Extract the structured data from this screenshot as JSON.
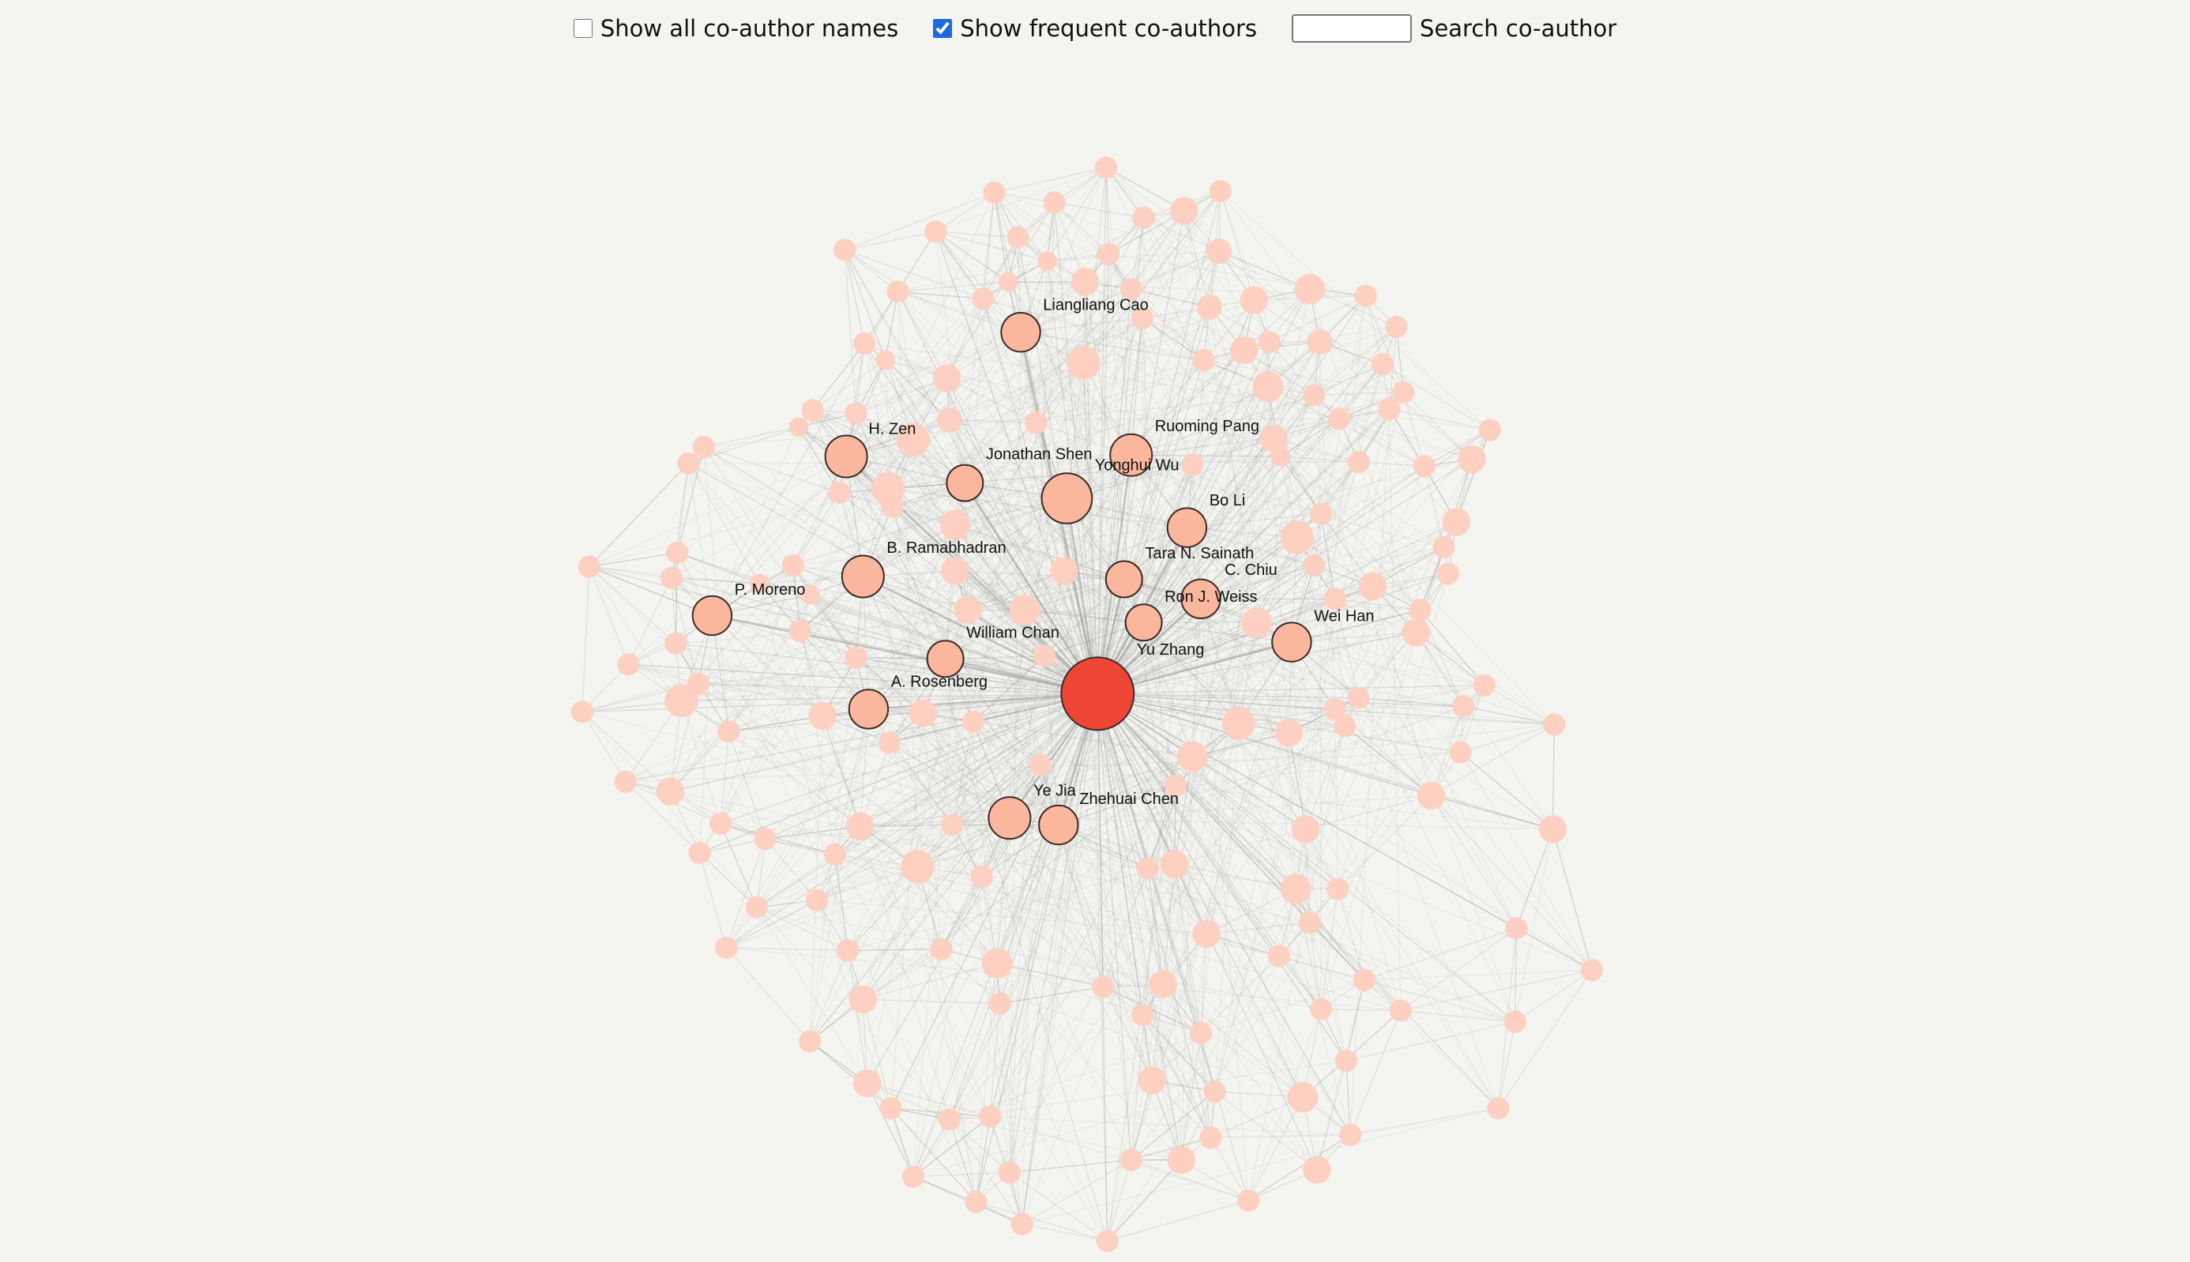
{
  "controls": {
    "show_all_label": "Show all co-author names",
    "show_all_checked": false,
    "show_frequent_label": "Show frequent co-authors",
    "show_frequent_checked": true,
    "search_label": "Search co-author",
    "search_value": ""
  },
  "colors": {
    "background": "#f4f4f0",
    "center_node": "#ee4634",
    "frequent_node": "#fbb79e",
    "minor_node": "#fdd0c2",
    "edge": "#9a9a9a"
  },
  "center": "Yu Zhang",
  "named_nodes": [
    "Yu Zhang",
    "Yonghui Wu",
    "H. Zen",
    "Liangliang Cao",
    "Ruoming Pang",
    "Jonathan Shen",
    "Bo Li",
    "B. Ramabhadran",
    "P. Moreno",
    "Tara N. Sainath",
    "C. Chiu",
    "Ron J. Weiss",
    "Wei Han",
    "William Chan",
    "A. Rosenberg",
    "Ye Jia",
    "Zhehuai Chen"
  ]
}
